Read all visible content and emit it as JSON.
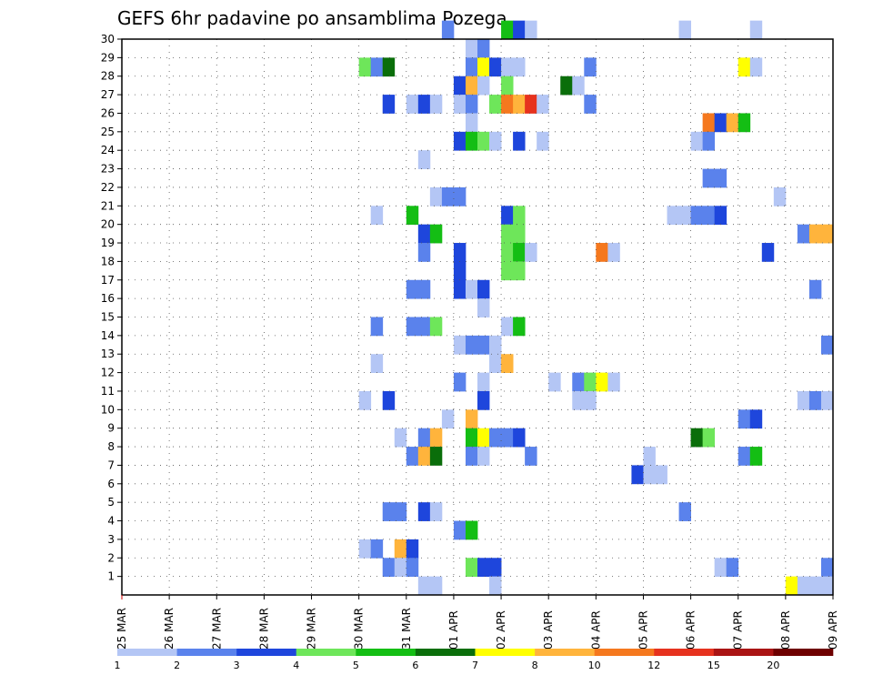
{
  "chart_data": {
    "type": "heatmap",
    "title": "GEFS 6hr padavine po ansamblima Pozega",
    "xlabel": "",
    "ylabel": "",
    "x_ticks": [
      "25 MAR",
      "26 MAR",
      "27 MAR",
      "28 MAR",
      "29 MAR",
      "30 MAR",
      "31 MAR",
      "01 APR",
      "02 APR",
      "03 APR",
      "04 APR",
      "05 APR",
      "06 APR",
      "07 APR",
      "08 APR",
      "09 APR"
    ],
    "y_ticks": [
      "1",
      "2",
      "3",
      "4",
      "5",
      "6",
      "7",
      "8",
      "9",
      "10",
      "11",
      "12",
      "13",
      "14",
      "15",
      "16",
      "17",
      "18",
      "19",
      "20",
      "21",
      "22",
      "23",
      "24",
      "25",
      "26",
      "27",
      "28",
      "29",
      "30"
    ],
    "xlim": [
      0,
      60
    ],
    "ylim": [
      0,
      30
    ],
    "grid": true,
    "colorbar": {
      "colors": [
        "#b4c6f5",
        "#5a82ec",
        "#1e46dc",
        "#6ee65a",
        "#14be14",
        "#0a6e0a",
        "#ffff00",
        "#ffb43c",
        "#f5781e",
        "#e6321e",
        "#aa1414",
        "#6e0000"
      ],
      "labels": [
        "1",
        "2",
        "3",
        "4",
        "5",
        "6",
        "7",
        "8",
        "10",
        "12",
        "15",
        "20"
      ]
    },
    "cells": [
      [
        27,
        30,
        2
      ],
      [
        32,
        30,
        5
      ],
      [
        33,
        30,
        3
      ],
      [
        34,
        30,
        1
      ],
      [
        47,
        30,
        1
      ],
      [
        53,
        30,
        1
      ],
      [
        29,
        29,
        1
      ],
      [
        30,
        29,
        2
      ],
      [
        30,
        28,
        1
      ],
      [
        20,
        28,
        4
      ],
      [
        21,
        28,
        2
      ],
      [
        22,
        28,
        6
      ],
      [
        29,
        28,
        2
      ],
      [
        30,
        28,
        7
      ],
      [
        31,
        28,
        3
      ],
      [
        32,
        28,
        1
      ],
      [
        33,
        28,
        1
      ],
      [
        39,
        28,
        2
      ],
      [
        52,
        28,
        7
      ],
      [
        53,
        28,
        1
      ],
      [
        28,
        27,
        3
      ],
      [
        29,
        27,
        8
      ],
      [
        30,
        27,
        1
      ],
      [
        32,
        27,
        4
      ],
      [
        37,
        27,
        6
      ],
      [
        38,
        27,
        1
      ],
      [
        22,
        26,
        3
      ],
      [
        24,
        26,
        1
      ],
      [
        25,
        26,
        3
      ],
      [
        26,
        26,
        1
      ],
      [
        28,
        26,
        1
      ],
      [
        29,
        26,
        2
      ],
      [
        31,
        26,
        4
      ],
      [
        32,
        26,
        9
      ],
      [
        33,
        26,
        8
      ],
      [
        34,
        26,
        10
      ],
      [
        35,
        26,
        1
      ],
      [
        39,
        26,
        2
      ],
      [
        29,
        25,
        1
      ],
      [
        49,
        25,
        9
      ],
      [
        50,
        25,
        3
      ],
      [
        51,
        25,
        8
      ],
      [
        52,
        25,
        5
      ],
      [
        28,
        24,
        3
      ],
      [
        29,
        24,
        5
      ],
      [
        30,
        24,
        4
      ],
      [
        31,
        24,
        1
      ],
      [
        33,
        24,
        3
      ],
      [
        35,
        24,
        1
      ],
      [
        48,
        24,
        1
      ],
      [
        49,
        24,
        2
      ],
      [
        25,
        23,
        1
      ],
      [
        49,
        22,
        2
      ],
      [
        50,
        22,
        2
      ],
      [
        26,
        21,
        1
      ],
      [
        27,
        21,
        2
      ],
      [
        28,
        21,
        2
      ],
      [
        55,
        21,
        1
      ],
      [
        21,
        20,
        1
      ],
      [
        24,
        20,
        5
      ],
      [
        32,
        20,
        3
      ],
      [
        33,
        20,
        4
      ],
      [
        46,
        20,
        1
      ],
      [
        47,
        20,
        1
      ],
      [
        48,
        20,
        2
      ],
      [
        49,
        20,
        2
      ],
      [
        50,
        20,
        3
      ],
      [
        25,
        19,
        3
      ],
      [
        26,
        19,
        5
      ],
      [
        32,
        19,
        4
      ],
      [
        33,
        19,
        4
      ],
      [
        57,
        19,
        2
      ],
      [
        58,
        19,
        8
      ],
      [
        59,
        19,
        8
      ],
      [
        25,
        18,
        2
      ],
      [
        32,
        18,
        4
      ],
      [
        33,
        18,
        5
      ],
      [
        28,
        18,
        3
      ],
      [
        34,
        18,
        1
      ],
      [
        40,
        18,
        9
      ],
      [
        41,
        18,
        1
      ],
      [
        54,
        18,
        3
      ],
      [
        28,
        17,
        3
      ],
      [
        32,
        17,
        4
      ],
      [
        33,
        17,
        4
      ],
      [
        24,
        16,
        2
      ],
      [
        25,
        16,
        2
      ],
      [
        28,
        16,
        3
      ],
      [
        29,
        16,
        1
      ],
      [
        30,
        16,
        3
      ],
      [
        58,
        16,
        2
      ],
      [
        30,
        15,
        1
      ],
      [
        21,
        14,
        2
      ],
      [
        24,
        14,
        2
      ],
      [
        25,
        14,
        2
      ],
      [
        26,
        14,
        4
      ],
      [
        32,
        14,
        1
      ],
      [
        33,
        14,
        5
      ],
      [
        28,
        13,
        1
      ],
      [
        29,
        13,
        2
      ],
      [
        30,
        13,
        2
      ],
      [
        31,
        13,
        1
      ],
      [
        59,
        13,
        2
      ],
      [
        21,
        12,
        1
      ],
      [
        31,
        12,
        1
      ],
      [
        32,
        12,
        8
      ],
      [
        28,
        11,
        2
      ],
      [
        30,
        11,
        1
      ],
      [
        36,
        11,
        1
      ],
      [
        38,
        11,
        2
      ],
      [
        39,
        11,
        4
      ],
      [
        40,
        11,
        7
      ],
      [
        41,
        11,
        1
      ],
      [
        20,
        10,
        1
      ],
      [
        22,
        10,
        3
      ],
      [
        30,
        10,
        3
      ],
      [
        38,
        10,
        1
      ],
      [
        39,
        10,
        1
      ],
      [
        57,
        10,
        1
      ],
      [
        58,
        10,
        2
      ],
      [
        59,
        10,
        1
      ],
      [
        27,
        9,
        1
      ],
      [
        29,
        9,
        8
      ],
      [
        52,
        9,
        2
      ],
      [
        53,
        9,
        3
      ],
      [
        23,
        8,
        1
      ],
      [
        25,
        8,
        2
      ],
      [
        26,
        8,
        8
      ],
      [
        29,
        8,
        5
      ],
      [
        30,
        8,
        7
      ],
      [
        31,
        8,
        2
      ],
      [
        32,
        8,
        2
      ],
      [
        33,
        8,
        3
      ],
      [
        48,
        8,
        6
      ],
      [
        49,
        8,
        4
      ],
      [
        24,
        7,
        2
      ],
      [
        25,
        7,
        8
      ],
      [
        26,
        7,
        6
      ],
      [
        29,
        7,
        2
      ],
      [
        30,
        7,
        1
      ],
      [
        34,
        7,
        2
      ],
      [
        44,
        7,
        1
      ],
      [
        52,
        7,
        2
      ],
      [
        53,
        7,
        5
      ],
      [
        43,
        6,
        3
      ],
      [
        44,
        6,
        1
      ],
      [
        45,
        6,
        1
      ],
      [
        22,
        4,
        2
      ],
      [
        23,
        4,
        2
      ],
      [
        25,
        4,
        3
      ],
      [
        26,
        4,
        1
      ],
      [
        47,
        4,
        2
      ],
      [
        28,
        3,
        2
      ],
      [
        29,
        3,
        5
      ],
      [
        20,
        2,
        1
      ],
      [
        21,
        2,
        2
      ],
      [
        23,
        2,
        8
      ],
      [
        24,
        2,
        3
      ],
      [
        22,
        1,
        2
      ],
      [
        23,
        1,
        1
      ],
      [
        24,
        1,
        2
      ],
      [
        29,
        1,
        4
      ],
      [
        30,
        1,
        3
      ],
      [
        31,
        1,
        3
      ],
      [
        50,
        1,
        1
      ],
      [
        51,
        1,
        2
      ],
      [
        59,
        1,
        2
      ],
      [
        25,
        0,
        1
      ],
      [
        26,
        0,
        1
      ],
      [
        31,
        0,
        1
      ],
      [
        56,
        0,
        7
      ],
      [
        57,
        0,
        1
      ],
      [
        58,
        0,
        1
      ],
      [
        59,
        0,
        1
      ]
    ]
  }
}
